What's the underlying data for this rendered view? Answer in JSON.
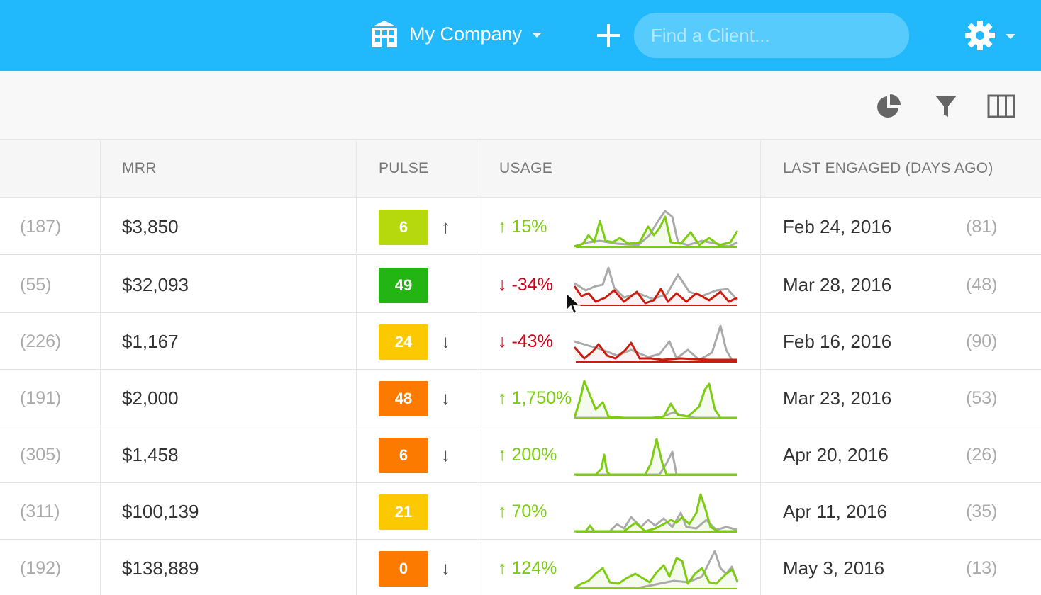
{
  "header": {
    "company_name": "My Company",
    "search_placeholder": "Find a Client...",
    "accent_color": "#22b8fc"
  },
  "toolbar": {
    "icons": [
      "pie-chart-icon",
      "filter-icon",
      "columns-icon"
    ]
  },
  "table": {
    "columns": [
      "MRR",
      "PULSE",
      "USAGE",
      "LAST ENGAGED (DAYS AGO)"
    ],
    "rows": [
      {
        "rank": "(187)",
        "mrr": "$3,850",
        "pulse": "6",
        "pulse_color": "#b5d90d",
        "trend": "↑",
        "usage_dir": "up",
        "usage_arrow": "↑",
        "usage_pct": "15%",
        "last_engaged": "Feb 24, 2016",
        "days": "(81)"
      },
      {
        "rank": "(55)",
        "mrr": "$32,093",
        "pulse": "49",
        "pulse_color": "#22b513",
        "trend": "",
        "usage_dir": "down",
        "usage_arrow": "↓",
        "usage_pct": "-34%",
        "last_engaged": "Mar 28, 2016",
        "days": "(48)"
      },
      {
        "rank": "(226)",
        "mrr": "$1,167",
        "pulse": "24",
        "pulse_color": "#fcc800",
        "trend": "↓",
        "usage_dir": "down",
        "usage_arrow": "↓",
        "usage_pct": "-43%",
        "last_engaged": "Feb 16, 2016",
        "days": "(90)"
      },
      {
        "rank": "(191)",
        "mrr": "$2,000",
        "pulse": "48",
        "pulse_color": "#fc7a00",
        "trend": "↓",
        "usage_dir": "up",
        "usage_arrow": "↑",
        "usage_pct": "1,750%",
        "last_engaged": "Mar 23, 2016",
        "days": "(53)"
      },
      {
        "rank": "(305)",
        "mrr": "$1,458",
        "pulse": "6",
        "pulse_color": "#fc7a00",
        "trend": "↓",
        "usage_dir": "up",
        "usage_arrow": "↑",
        "usage_pct": "200%",
        "last_engaged": "Apr 20, 2016",
        "days": "(26)"
      },
      {
        "rank": "(311)",
        "mrr": "$100,139",
        "pulse": "21",
        "pulse_color": "#fcc800",
        "trend": "",
        "usage_dir": "up",
        "usage_arrow": "↑",
        "usage_pct": "70%",
        "last_engaged": "Apr 11, 2016",
        "days": "(35)"
      },
      {
        "rank": "(192)",
        "mrr": "$138,889",
        "pulse": "0",
        "pulse_color": "#fc7a00",
        "trend": "↓",
        "usage_dir": "up",
        "usage_arrow": "↑",
        "usage_pct": "124%",
        "last_engaged": "May 3, 2016",
        "days": "(13)"
      }
    ]
  }
}
